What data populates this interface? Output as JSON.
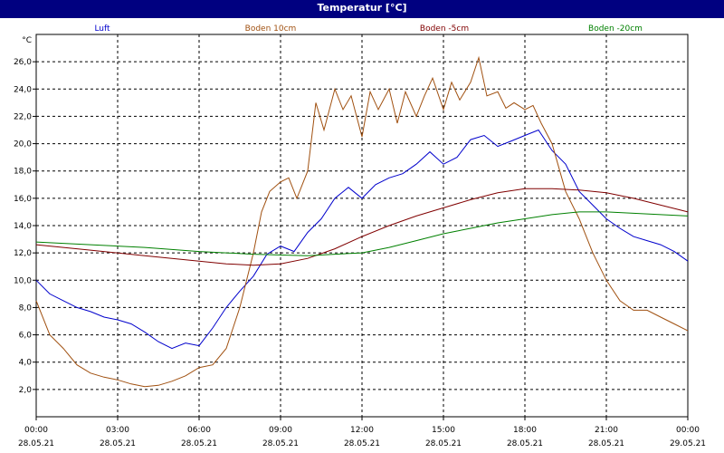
{
  "window": {
    "title": "Temperatur [°C]"
  },
  "chart_data": {
    "type": "line",
    "title": "Temperatur [°C]",
    "ylabel": "°C",
    "ylim": [
      0,
      28
    ],
    "xlim": [
      0,
      24
    ],
    "grid": true,
    "legend_position": "top",
    "y_ticks": [
      "2,0",
      "4,0",
      "6,0",
      "8,0",
      "10,0",
      "12,0",
      "14,0",
      "16,0",
      "18,0",
      "20,0",
      "22,0",
      "24,0",
      "26,0"
    ],
    "y_tick_values": [
      2,
      4,
      6,
      8,
      10,
      12,
      14,
      16,
      18,
      20,
      22,
      24,
      26
    ],
    "x_ticks": [
      {
        "hour": 0,
        "time": "00:00",
        "date": "28.05.21"
      },
      {
        "hour": 3,
        "time": "03:00",
        "date": "28.05.21"
      },
      {
        "hour": 6,
        "time": "06:00",
        "date": "28.05.21"
      },
      {
        "hour": 9,
        "time": "09:00",
        "date": "28.05.21"
      },
      {
        "hour": 12,
        "time": "12:00",
        "date": "28.05.21"
      },
      {
        "hour": 15,
        "time": "15:00",
        "date": "28.05.21"
      },
      {
        "hour": 18,
        "time": "18:00",
        "date": "28.05.21"
      },
      {
        "hour": 21,
        "time": "21:00",
        "date": "28.05.21"
      },
      {
        "hour": 24,
        "time": "00:00",
        "date": "29.05.21"
      }
    ],
    "series": [
      {
        "name": "Luft",
        "color": "#0000cc",
        "x": [
          0,
          0.5,
          1,
          1.5,
          2,
          2.5,
          3,
          3.5,
          4,
          4.5,
          5,
          5.5,
          6,
          6.5,
          7,
          7.5,
          8,
          8.5,
          9,
          9.5,
          10,
          10.5,
          11,
          11.5,
          12,
          12.5,
          13,
          13.5,
          14,
          14.5,
          15,
          15.5,
          16,
          16.5,
          17,
          17.5,
          18,
          18.5,
          19,
          19.5,
          20,
          20.5,
          21,
          21.5,
          22,
          22.5,
          23,
          23.5,
          24
        ],
        "y": [
          10.0,
          9.0,
          8.5,
          8.0,
          7.7,
          7.3,
          7.1,
          6.8,
          6.2,
          5.5,
          5.0,
          5.4,
          5.2,
          6.5,
          8.0,
          9.2,
          10.3,
          11.9,
          12.5,
          12.1,
          13.5,
          14.5,
          16.0,
          16.8,
          16.0,
          17.0,
          17.5,
          17.8,
          18.5,
          19.4,
          18.5,
          19.0,
          20.3,
          20.6,
          19.8,
          20.2,
          20.6,
          21.0,
          19.5,
          18.5,
          16.5,
          15.5,
          14.5,
          13.8,
          13.2,
          12.9,
          12.6,
          12.1,
          11.4
        ]
      },
      {
        "name": "Boden 10cm",
        "color": "#a05010",
        "x": [
          0,
          0.5,
          1,
          1.5,
          2,
          2.5,
          3,
          3.5,
          4,
          4.5,
          5,
          5.5,
          6,
          6.5,
          7,
          7.5,
          8,
          8.3,
          8.6,
          9,
          9.3,
          9.6,
          10,
          10.3,
          10.6,
          11,
          11.3,
          11.6,
          12,
          12.3,
          12.6,
          13,
          13.3,
          13.6,
          14,
          14.3,
          14.6,
          15,
          15.3,
          15.6,
          16,
          16.3,
          16.6,
          17,
          17.3,
          17.6,
          18,
          18.3,
          18.6,
          19,
          19.5,
          20,
          20.5,
          21,
          21.5,
          22,
          22.5,
          23,
          23.5,
          24
        ],
        "y": [
          8.5,
          6.0,
          5.0,
          3.8,
          3.2,
          2.9,
          2.7,
          2.4,
          2.2,
          2.3,
          2.6,
          3.0,
          3.6,
          3.8,
          5.0,
          8.0,
          12.0,
          15.0,
          16.5,
          17.2,
          17.5,
          16.0,
          18.0,
          23.0,
          21.0,
          24.0,
          22.5,
          23.5,
          20.5,
          23.8,
          22.5,
          24.0,
          21.5,
          23.8,
          22.0,
          23.5,
          24.8,
          22.5,
          24.5,
          23.2,
          24.5,
          26.3,
          23.5,
          23.8,
          22.6,
          23.0,
          22.5,
          22.8,
          21.5,
          20.0,
          16.5,
          14.5,
          12.0,
          10.0,
          8.5,
          7.8,
          7.8,
          7.3,
          6.8,
          6.3
        ]
      },
      {
        "name": "Boden -5cm",
        "color": "#800000",
        "x": [
          0,
          2,
          4,
          6,
          7,
          8,
          9,
          10,
          11,
          12,
          13,
          14,
          15,
          16,
          17,
          18,
          19,
          20,
          21,
          22,
          23,
          24
        ],
        "y": [
          12.6,
          12.2,
          11.8,
          11.4,
          11.2,
          11.1,
          11.2,
          11.6,
          12.3,
          13.2,
          14.0,
          14.7,
          15.3,
          15.9,
          16.4,
          16.7,
          16.7,
          16.6,
          16.4,
          16.0,
          15.5,
          15.0
        ]
      },
      {
        "name": "Boden -20cm",
        "color": "#008000",
        "x": [
          0,
          2,
          4,
          6,
          8,
          10,
          11,
          12,
          13,
          14,
          15,
          16,
          17,
          18,
          19,
          20,
          21,
          22,
          23,
          24
        ],
        "y": [
          12.8,
          12.6,
          12.4,
          12.1,
          11.9,
          11.8,
          11.9,
          12.0,
          12.4,
          12.9,
          13.4,
          13.8,
          14.2,
          14.5,
          14.8,
          15.0,
          15.0,
          14.9,
          14.8,
          14.7
        ]
      }
    ]
  }
}
